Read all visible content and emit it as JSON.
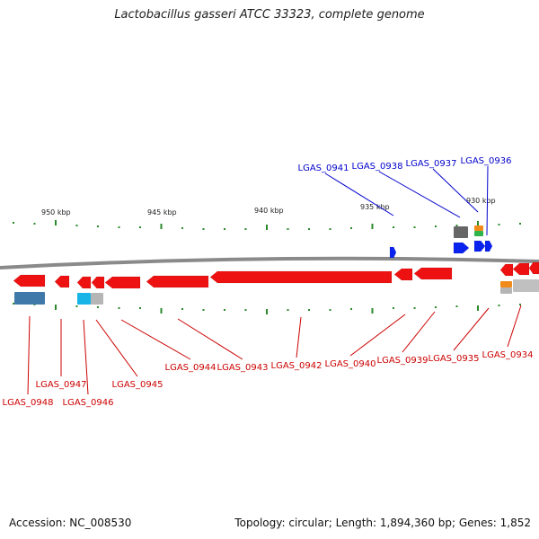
{
  "title": "Lactobacillus gasseri ATCC 33323, complete genome",
  "footer": {
    "accession": "Accession: NC_008530",
    "summary": "Topology: circular; Length: 1,894,360 bp; Genes: 1,852"
  },
  "scale_labels": [
    "950 kbp",
    "945 kbp",
    "940 kbp",
    "935 kbp",
    "930 kbp"
  ],
  "colors": {
    "backbone": "#8a8a8a",
    "reverse_gene": "#ee1111",
    "forward_gene": "#0a22ee",
    "reverse_label": "#cc0000",
    "forward_label": "#0000cc",
    "tick": "#2a8a2a"
  },
  "forward_genes": [
    "LGAS_0941",
    "LGAS_0938",
    "LGAS_0937",
    "LGAS_0936"
  ],
  "reverse_genes": [
    "LGAS_0948",
    "LGAS_0947",
    "LGAS_0946",
    "LGAS_0945",
    "LGAS_0944",
    "LGAS_0943",
    "LGAS_0942",
    "LGAS_0940",
    "LGAS_0939",
    "LGAS_0935",
    "LGAS_0934"
  ]
}
